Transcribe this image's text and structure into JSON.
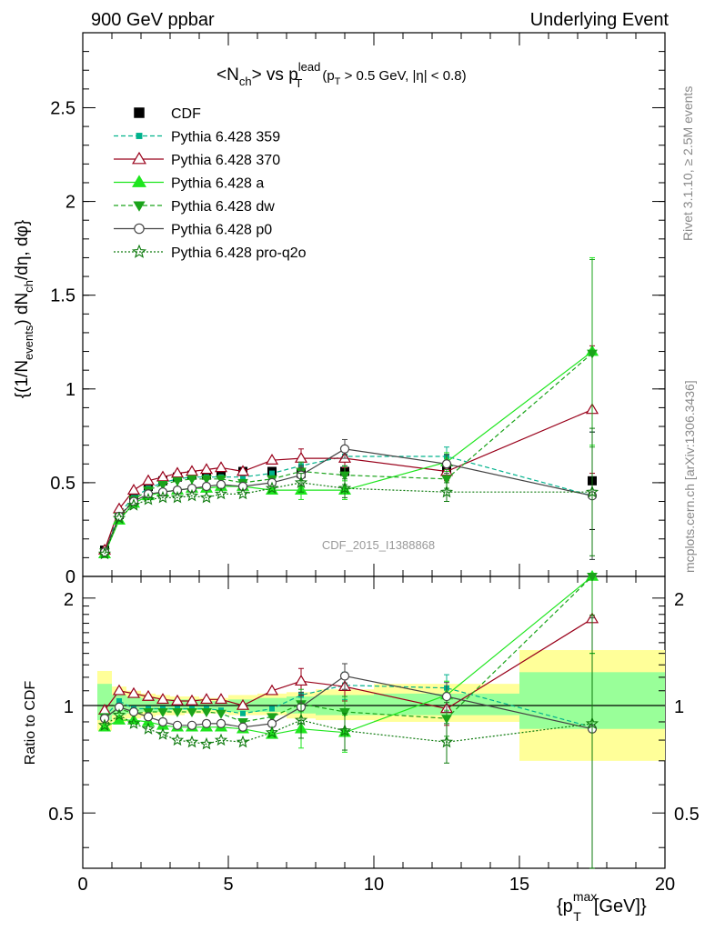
{
  "header": {
    "left": "900 GeV ppbar",
    "right": "Underlying Event"
  },
  "title": {
    "main": "<N",
    "main_sub": "ch",
    "mid": "> vs p",
    "mid_sup": "lead",
    "mid_sub": "T",
    "cut": "(p",
    "cut_sub": "T",
    "cut_rest": " > 0.5 GeV, |η| < 0.8)"
  },
  "watermark": "CDF_2015_I1388868",
  "side_text": {
    "rivet": "Rivet 3.1.10, ≥ 2.5M events",
    "mcplots": "mcplots.cern.ch [arXiv:1306.3436]"
  },
  "ylabel_main": "{(1/N_events) dN_ch/dη, dφ}",
  "ylabel_ratio": "Ratio to CDF",
  "xlabel": "{p_T^max [GeV]}",
  "colors": {
    "cdf": "#000000",
    "359": "#00b28c",
    "370": "#99001a",
    "a": "#1ee61e",
    "dw": "#1aa31a",
    "p0": "#444444",
    "proq2o": "#0d7a0d",
    "band_yellow": "#ffff99",
    "band_green": "#99ff99"
  },
  "chart_data": [
    {
      "type": "line",
      "panel": "main",
      "ylim": [
        0,
        2.9
      ],
      "xlim": [
        0,
        20
      ],
      "yticks": [
        "0",
        "0.5",
        "1",
        "1.5",
        "2",
        "2.5"
      ],
      "x": [
        0.75,
        1.25,
        1.75,
        2.25,
        2.75,
        3.25,
        3.75,
        4.25,
        4.75,
        5.5,
        6.5,
        7.5,
        9.0,
        12.5,
        17.5
      ],
      "series": [
        {
          "name": "CDF",
          "key": "cdf",
          "values": [
            0.14,
            0.33,
            0.43,
            0.48,
            0.51,
            0.53,
            0.54,
            0.54,
            0.55,
            0.56,
            0.56,
            0.55,
            0.56,
            0.57,
            0.51
          ]
        },
        {
          "name": "Pythia 6.428 359",
          "key": "359",
          "values": [
            0.13,
            0.34,
            0.42,
            0.47,
            0.5,
            0.52,
            0.53,
            0.53,
            0.53,
            0.53,
            0.55,
            0.59,
            0.64,
            0.64,
            0.43
          ]
        },
        {
          "name": "Pythia 6.428 370",
          "key": "370",
          "values": [
            0.14,
            0.36,
            0.46,
            0.51,
            0.53,
            0.55,
            0.56,
            0.57,
            0.58,
            0.56,
            0.62,
            0.63,
            0.63,
            0.56,
            0.89
          ]
        },
        {
          "name": "Pythia 6.428 a",
          "key": "a",
          "values": [
            0.12,
            0.3,
            0.39,
            0.43,
            0.45,
            0.46,
            0.47,
            0.47,
            0.48,
            0.48,
            0.46,
            0.46,
            0.46,
            0.61,
            1.2
          ]
        },
        {
          "name": "Pythia 6.428 dw",
          "key": "dw",
          "values": [
            0.13,
            0.32,
            0.41,
            0.46,
            0.49,
            0.51,
            0.52,
            0.52,
            0.52,
            0.5,
            0.52,
            0.56,
            0.54,
            0.52,
            1.19
          ]
        },
        {
          "name": "Pythia 6.428 p0",
          "key": "p0",
          "values": [
            0.13,
            0.32,
            0.4,
            0.44,
            0.45,
            0.46,
            0.47,
            0.48,
            0.49,
            0.48,
            0.5,
            0.54,
            0.68,
            0.6,
            0.43
          ]
        },
        {
          "name": "Pythia 6.428 pro-q2o",
          "key": "proq2o",
          "values": [
            0.12,
            0.31,
            0.38,
            0.41,
            0.42,
            0.42,
            0.43,
            0.42,
            0.44,
            0.44,
            0.47,
            0.5,
            0.47,
            0.45,
            0.45
          ]
        }
      ]
    },
    {
      "type": "line",
      "panel": "ratio",
      "ylim": [
        0.35,
        2.3
      ],
      "xlim": [
        0,
        20
      ],
      "yticks": [
        "0.5",
        "1",
        "2"
      ],
      "xticks": [
        "0",
        "5",
        "10",
        "15",
        "20"
      ],
      "bands": {
        "x_edges": [
          0.5,
          1.0,
          1.5,
          2.0,
          2.5,
          3.0,
          3.5,
          4.0,
          4.5,
          5.0,
          6.0,
          7.0,
          8.0,
          10.0,
          15.0,
          20.0
        ],
        "yellow": [
          [
            0.85,
            1.25
          ],
          [
            0.9,
            1.13
          ],
          [
            0.92,
            1.1
          ],
          [
            0.93,
            1.08
          ],
          [
            0.94,
            1.07
          ],
          [
            0.94,
            1.06
          ],
          [
            0.95,
            1.06
          ],
          [
            0.95,
            1.05
          ],
          [
            0.95,
            1.05
          ],
          [
            0.94,
            1.07
          ],
          [
            0.94,
            1.08
          ],
          [
            0.92,
            1.09
          ],
          [
            0.91,
            1.11
          ],
          [
            0.9,
            1.15
          ],
          [
            0.7,
            1.43
          ]
        ],
        "green": [
          [
            0.91,
            1.15
          ],
          [
            0.94,
            1.07
          ],
          [
            0.95,
            1.06
          ],
          [
            0.96,
            1.05
          ],
          [
            0.96,
            1.04
          ],
          [
            0.97,
            1.04
          ],
          [
            0.97,
            1.04
          ],
          [
            0.97,
            1.03
          ],
          [
            0.97,
            1.03
          ],
          [
            0.96,
            1.04
          ],
          [
            0.96,
            1.05
          ],
          [
            0.95,
            1.06
          ],
          [
            0.94,
            1.07
          ],
          [
            0.94,
            1.08
          ],
          [
            0.86,
            1.24
          ]
        ]
      },
      "x": [
        0.75,
        1.25,
        1.75,
        2.25,
        2.75,
        3.25,
        3.75,
        4.25,
        4.75,
        5.5,
        6.5,
        7.5,
        9.0,
        12.5,
        17.5
      ],
      "series": [
        {
          "name": "Pythia 6.428 359",
          "key": "359",
          "values": [
            0.93,
            1.03,
            0.98,
            0.98,
            0.98,
            0.98,
            0.98,
            0.98,
            0.97,
            0.95,
            0.98,
            1.07,
            1.14,
            1.12,
            0.87
          ]
        },
        {
          "name": "Pythia 6.428 370",
          "key": "370",
          "values": [
            0.97,
            1.1,
            1.08,
            1.06,
            1.04,
            1.03,
            1.03,
            1.04,
            1.04,
            1.0,
            1.1,
            1.17,
            1.13,
            0.98,
            1.75
          ]
        },
        {
          "name": "Pythia 6.428 a",
          "key": "a",
          "values": [
            0.87,
            0.91,
            0.91,
            0.9,
            0.88,
            0.87,
            0.87,
            0.87,
            0.87,
            0.86,
            0.83,
            0.86,
            0.84,
            1.07,
            2.3
          ]
        },
        {
          "name": "Pythia 6.428 dw",
          "key": "dw",
          "values": [
            0.93,
            0.98,
            0.95,
            0.96,
            0.96,
            0.96,
            0.96,
            0.96,
            0.95,
            0.9,
            0.93,
            1.01,
            0.96,
            0.92,
            2.3
          ]
        },
        {
          "name": "Pythia 6.428 p0",
          "key": "p0",
          "values": [
            0.92,
            0.99,
            0.96,
            0.93,
            0.9,
            0.88,
            0.88,
            0.89,
            0.89,
            0.87,
            0.89,
            0.99,
            1.21,
            1.06,
            0.86
          ]
        },
        {
          "name": "Pythia 6.428 pro-q2o",
          "key": "proq2o",
          "values": [
            0.88,
            0.94,
            0.89,
            0.86,
            0.83,
            0.8,
            0.79,
            0.78,
            0.8,
            0.79,
            0.84,
            0.91,
            0.85,
            0.79,
            0.89
          ]
        }
      ]
    }
  ]
}
